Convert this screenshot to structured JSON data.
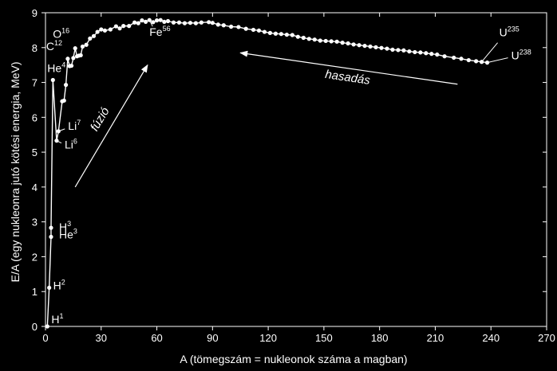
{
  "colors": {
    "background": "#000000",
    "foreground": "#ffffff"
  },
  "chart_data": {
    "type": "line",
    "xlabel": "A (tömegszám = nukleonok száma a magban)",
    "ylabel": "E/A (egy nukleonra jutó kötési energia, MeV)",
    "xlim": [
      0,
      270
    ],
    "ylim": [
      0,
      9
    ],
    "xticks": [
      0,
      30,
      60,
      90,
      120,
      150,
      180,
      210,
      240,
      270
    ],
    "yticks": [
      0,
      1,
      2,
      3,
      4,
      5,
      6,
      7,
      8,
      9
    ],
    "grid": false,
    "series": [
      {
        "marker": "dot",
        "points": [
          [
            1,
            0
          ],
          [
            2,
            1.11
          ],
          [
            3,
            2.57
          ],
          [
            3,
            2.83
          ],
          [
            4,
            7.07
          ],
          [
            6,
            5.33
          ],
          [
            7,
            5.6
          ],
          [
            9,
            6.46
          ],
          [
            10,
            6.48
          ],
          [
            11,
            6.93
          ],
          [
            12,
            7.68
          ],
          [
            13,
            7.47
          ],
          [
            14,
            7.48
          ],
          [
            15,
            7.7
          ],
          [
            16,
            7.98
          ],
          [
            17,
            7.75
          ],
          [
            18,
            7.77
          ],
          [
            19,
            7.78
          ],
          [
            20,
            8.03
          ],
          [
            22,
            8.08
          ],
          [
            24,
            8.26
          ],
          [
            26,
            8.33
          ],
          [
            28,
            8.45
          ],
          [
            30,
            8.52
          ],
          [
            32,
            8.49
          ],
          [
            35,
            8.52
          ],
          [
            38,
            8.61
          ],
          [
            40,
            8.55
          ],
          [
            42,
            8.62
          ],
          [
            45,
            8.62
          ],
          [
            48,
            8.72
          ],
          [
            50,
            8.7
          ],
          [
            52,
            8.78
          ],
          [
            54,
            8.74
          ],
          [
            56,
            8.79
          ],
          [
            58,
            8.73
          ],
          [
            60,
            8.78
          ],
          [
            62,
            8.79
          ],
          [
            64,
            8.74
          ],
          [
            66,
            8.76
          ],
          [
            69,
            8.72
          ],
          [
            72,
            8.72
          ],
          [
            75,
            8.7
          ],
          [
            78,
            8.71
          ],
          [
            81,
            8.7
          ],
          [
            84,
            8.72
          ],
          [
            88,
            8.73
          ],
          [
            90,
            8.71
          ],
          [
            93,
            8.66
          ],
          [
            96,
            8.64
          ],
          [
            100,
            8.6
          ],
          [
            104,
            8.59
          ],
          [
            108,
            8.54
          ],
          [
            112,
            8.51
          ],
          [
            115,
            8.49
          ],
          [
            118,
            8.45
          ],
          [
            121,
            8.42
          ],
          [
            124,
            8.4
          ],
          [
            127,
            8.39
          ],
          [
            130,
            8.37
          ],
          [
            133,
            8.36
          ],
          [
            136,
            8.31
          ],
          [
            139,
            8.28
          ],
          [
            142,
            8.25
          ],
          [
            145,
            8.23
          ],
          [
            148,
            8.2
          ],
          [
            151,
            8.19
          ],
          [
            154,
            8.18
          ],
          [
            157,
            8.17
          ],
          [
            160,
            8.14
          ],
          [
            163,
            8.12
          ],
          [
            166,
            8.09
          ],
          [
            169,
            8.07
          ],
          [
            172,
            8.05
          ],
          [
            175,
            8.03
          ],
          [
            178,
            8.01
          ],
          [
            181,
            7.99
          ],
          [
            184,
            7.97
          ],
          [
            187,
            7.94
          ],
          [
            190,
            7.93
          ],
          [
            193,
            7.92
          ],
          [
            196,
            7.89
          ],
          [
            199,
            7.87
          ],
          [
            202,
            7.86
          ],
          [
            205,
            7.84
          ],
          [
            208,
            7.82
          ],
          [
            211,
            7.8
          ],
          [
            215,
            7.75
          ],
          [
            220,
            7.71
          ],
          [
            224,
            7.68
          ],
          [
            228,
            7.64
          ],
          [
            232,
            7.61
          ],
          [
            235,
            7.59
          ],
          [
            238,
            7.57
          ]
        ]
      }
    ],
    "annotations": [
      {
        "base": "H",
        "sup": "1",
        "x": 1,
        "y": 0
      },
      {
        "base": "H",
        "sup": "2",
        "x": 2,
        "y": 1.11
      },
      {
        "base": "He",
        "sup": "3",
        "x": 3,
        "y": 2.57
      },
      {
        "base": "H",
        "sup": "3",
        "x": 3,
        "y": 2.83
      },
      {
        "base": "He",
        "sup": "4",
        "x": 4,
        "y": 7.07
      },
      {
        "base": "Li",
        "sup": "6",
        "x": 6,
        "y": 5.33
      },
      {
        "base": "Li",
        "sup": "7",
        "x": 7,
        "y": 5.6
      },
      {
        "base": "C",
        "sup": "12",
        "x": 12,
        "y": 7.68
      },
      {
        "base": "O",
        "sup": "16",
        "x": 16,
        "y": 7.98
      },
      {
        "base": "Fe",
        "sup": "56",
        "x": 56,
        "y": 8.79
      },
      {
        "base": "U",
        "sup": "235",
        "x": 235,
        "y": 7.59
      },
      {
        "base": "U",
        "sup": "238",
        "x": 238,
        "y": 7.57
      }
    ],
    "arrows": [
      {
        "label": "fúzió",
        "from": [
          16,
          4.0
        ],
        "to": [
          55,
          7.5
        ]
      },
      {
        "label": "hasadás",
        "from": [
          222,
          6.95
        ],
        "to": [
          105,
          7.85
        ]
      }
    ]
  }
}
